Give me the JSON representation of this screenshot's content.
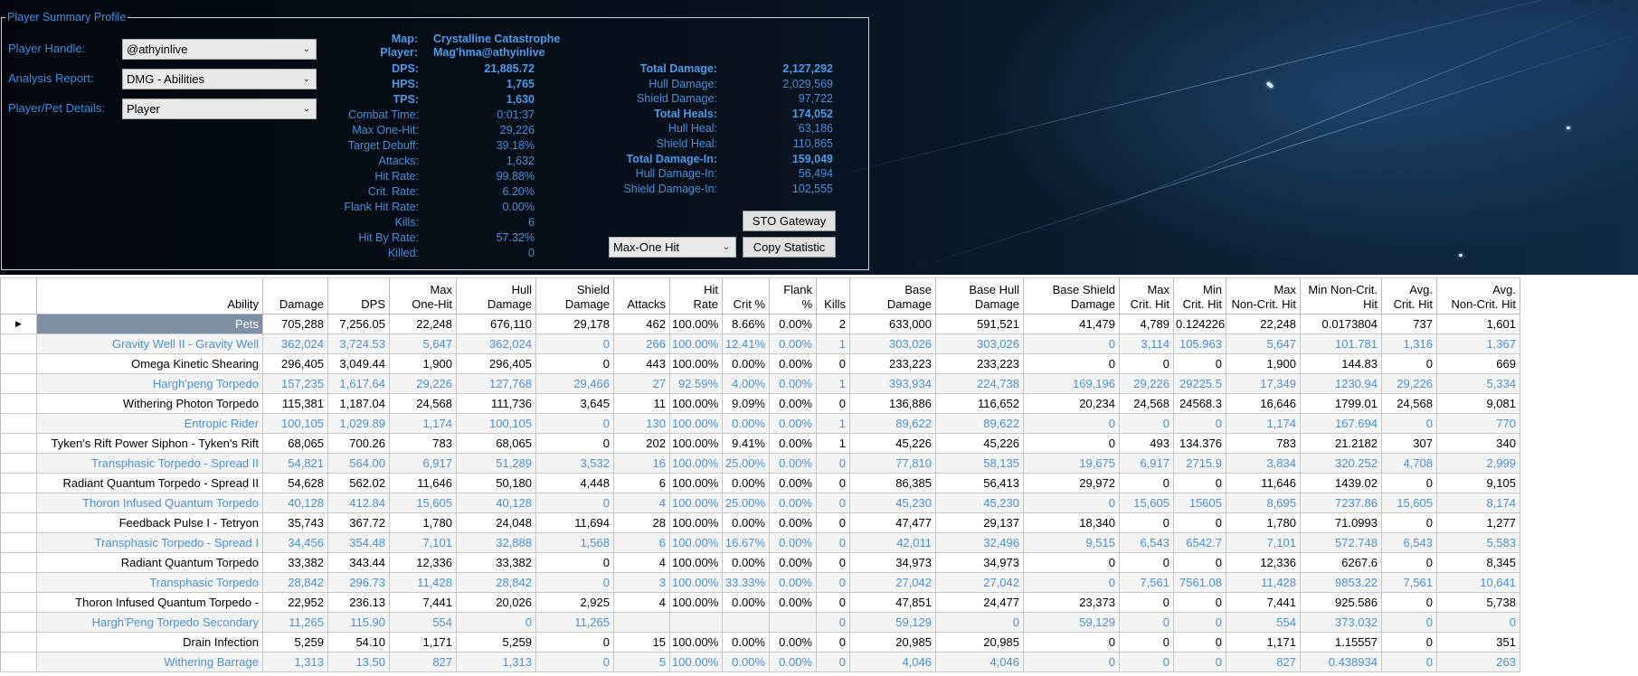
{
  "panel": {
    "title": "Player Summary Profile",
    "player_handle_label": "Player Handle:",
    "player_handle_value": "@athyinlive",
    "analysis_report_label": "Analysis Report:",
    "analysis_report_value": "DMG - Abilities",
    "player_pet_label": "Player/Pet Details:",
    "player_pet_value": "Player"
  },
  "stats": {
    "map_label": "Map:",
    "map_value": "Crystalline Catastrophe",
    "player_label": "Player:",
    "player_value": "Mag'hma@athyinlive",
    "left": [
      {
        "label": "DPS:",
        "value": "21,885.72",
        "bold": true
      },
      {
        "label": "HPS:",
        "value": "1,765",
        "bold": true
      },
      {
        "label": "TPS:",
        "value": "1,630",
        "bold": true
      },
      {
        "label": "Combat Time:",
        "value": "0:01:37"
      },
      {
        "label": "Max One-Hit:",
        "value": "29,226"
      },
      {
        "label": "Target Debuff:",
        "value": "39.18%"
      },
      {
        "label": "Attacks:",
        "value": "1,632"
      },
      {
        "label": "Hit Rate:",
        "value": "99.88%"
      },
      {
        "label": "Crit. Rate:",
        "value": "6.20%"
      },
      {
        "label": "Flank Hit Rate:",
        "value": "0.00%"
      },
      {
        "label": "Kills:",
        "value": "6"
      },
      {
        "label": "Hit By Rate:",
        "value": "57.32%"
      },
      {
        "label": "Killed:",
        "value": "0"
      }
    ],
    "right": [
      {
        "label": "Total Damage:",
        "value": "2,127,292",
        "bold": true
      },
      {
        "label": "Hull Damage:",
        "value": "2,029,569"
      },
      {
        "label": "Shield Damage:",
        "value": "97,722"
      },
      {
        "label": "Total Heals:",
        "value": "174,052",
        "bold": true
      },
      {
        "label": "Hull Heal:",
        "value": "63,186"
      },
      {
        "label": "Shield Heal:",
        "value": "110,865"
      },
      {
        "label": "Total Damage-In:",
        "value": "159,049",
        "bold": true
      },
      {
        "label": "Hull Damage-In:",
        "value": "56,494"
      },
      {
        "label": "Shield Damage-In:",
        "value": "102,555"
      }
    ]
  },
  "buttons": {
    "sto_gateway": "STO Gateway",
    "copy_statistic": "Copy Statistic",
    "statistic_select": "Max-One Hit"
  },
  "table": {
    "headers": [
      "Ability",
      "Damage",
      "DPS",
      "Max\nOne-Hit",
      "Hull\nDamage",
      "Shield\nDamage",
      "Attacks",
      "Hit\nRate",
      "Crit %",
      "Flank\n%",
      "Kills",
      "Base\nDamage",
      "Base Hull\nDamage",
      "Base Shield\nDamage",
      "Max\nCrit. Hit",
      "Min\nCrit. Hit",
      "Max\nNon-Crit. Hit",
      "Min Non-Crit.\nHit",
      "Avg.\nCrit. Hit",
      "Avg.\nNon-Crit. Hit"
    ],
    "rows": [
      {
        "style": "dark",
        "selected": true,
        "cells": [
          "Pets",
          "705,288",
          "7,256.05",
          "22,248",
          "676,110",
          "29,178",
          "462",
          "100.00%",
          "8.66%",
          "0.00%",
          "2",
          "633,000",
          "591,521",
          "41,479",
          "4,789",
          "0.124226",
          "22,248",
          "0.0173804",
          "737",
          "1,601"
        ]
      },
      {
        "style": "light",
        "cells": [
          "Gravity Well II - Gravity Well",
          "362,024",
          "3,724.53",
          "5,647",
          "362,024",
          "0",
          "266",
          "100.00%",
          "12.41%",
          "0.00%",
          "1",
          "303,026",
          "303,026",
          "0",
          "3,114",
          "105.963",
          "5,647",
          "101.781",
          "1,316",
          "1,367"
        ]
      },
      {
        "style": "dark",
        "cells": [
          "Omega Kinetic Shearing",
          "296,405",
          "3,049.44",
          "1,900",
          "296,405",
          "0",
          "443",
          "100.00%",
          "0.00%",
          "0.00%",
          "0",
          "233,223",
          "233,223",
          "0",
          "0",
          "0",
          "1,900",
          "144.83",
          "0",
          "669"
        ]
      },
      {
        "style": "light",
        "cells": [
          "Hargh'peng Torpedo",
          "157,235",
          "1,617.64",
          "29,226",
          "127,768",
          "29,466",
          "27",
          "92.59%",
          "4.00%",
          "0.00%",
          "1",
          "393,934",
          "224,738",
          "169,196",
          "29,226",
          "29225.5",
          "17,349",
          "1230.94",
          "29,226",
          "5,334"
        ]
      },
      {
        "style": "dark",
        "cells": [
          "Withering Photon Torpedo",
          "115,381",
          "1,187.04",
          "24,568",
          "111,736",
          "3,645",
          "11",
          "100.00%",
          "9.09%",
          "0.00%",
          "0",
          "136,886",
          "116,652",
          "20,234",
          "24,568",
          "24568.3",
          "16,646",
          "1799.01",
          "24,568",
          "9,081"
        ]
      },
      {
        "style": "light",
        "cells": [
          "Entropic Rider",
          "100,105",
          "1,029.89",
          "1,174",
          "100,105",
          "0",
          "130",
          "100.00%",
          "0.00%",
          "0.00%",
          "1",
          "89,622",
          "89,622",
          "0",
          "0",
          "0",
          "1,174",
          "167.694",
          "0",
          "770"
        ]
      },
      {
        "style": "dark",
        "cells": [
          "Tyken's Rift Power Siphon - Tyken's Rift",
          "68,065",
          "700.26",
          "783",
          "68,065",
          "0",
          "202",
          "100.00%",
          "9.41%",
          "0.00%",
          "1",
          "45,226",
          "45,226",
          "0",
          "493",
          "134.376",
          "783",
          "21.2182",
          "307",
          "340"
        ]
      },
      {
        "style": "light",
        "cells": [
          "Transphasic Torpedo - Spread II",
          "54,821",
          "564.00",
          "6,917",
          "51,289",
          "3,532",
          "16",
          "100.00%",
          "25.00%",
          "0.00%",
          "0",
          "77,810",
          "58,135",
          "19,675",
          "6,917",
          "2715.9",
          "3,834",
          "320.252",
          "4,708",
          "2,999"
        ]
      },
      {
        "style": "dark",
        "cells": [
          "Radiant Quantum Torpedo - Spread II",
          "54,628",
          "562.02",
          "11,646",
          "50,180",
          "4,448",
          "6",
          "100.00%",
          "0.00%",
          "0.00%",
          "0",
          "86,385",
          "56,413",
          "29,972",
          "0",
          "0",
          "11,646",
          "1439.02",
          "0",
          "9,105"
        ]
      },
      {
        "style": "light",
        "cells": [
          "Thoron Infused Quantum Torpedo",
          "40,128",
          "412.84",
          "15,605",
          "40,128",
          "0",
          "4",
          "100.00%",
          "25.00%",
          "0.00%",
          "0",
          "45,230",
          "45,230",
          "0",
          "15,605",
          "15605",
          "8,695",
          "7237.86",
          "15,605",
          "8,174"
        ]
      },
      {
        "style": "dark",
        "cells": [
          "Feedback Pulse I - Tetryon",
          "35,743",
          "367.72",
          "1,780",
          "24,048",
          "11,694",
          "28",
          "100.00%",
          "0.00%",
          "0.00%",
          "0",
          "47,477",
          "29,137",
          "18,340",
          "0",
          "0",
          "1,780",
          "71.0993",
          "0",
          "1,277"
        ]
      },
      {
        "style": "light",
        "cells": [
          "Transphasic Torpedo - Spread I",
          "34,456",
          "354.48",
          "7,101",
          "32,888",
          "1,568",
          "6",
          "100.00%",
          "16.67%",
          "0.00%",
          "0",
          "42,011",
          "32,496",
          "9,515",
          "6,543",
          "6542.7",
          "7,101",
          "572.748",
          "6,543",
          "5,583"
        ]
      },
      {
        "style": "dark",
        "cells": [
          "Radiant Quantum Torpedo",
          "33,382",
          "343.44",
          "12,336",
          "33,382",
          "0",
          "4",
          "100.00%",
          "0.00%",
          "0.00%",
          "0",
          "34,973",
          "34,973",
          "0",
          "0",
          "0",
          "12,336",
          "6267.6",
          "0",
          "8,345"
        ]
      },
      {
        "style": "light",
        "cells": [
          "Transphasic Torpedo",
          "28,842",
          "296.73",
          "11,428",
          "28,842",
          "0",
          "3",
          "100.00%",
          "33.33%",
          "0.00%",
          "0",
          "27,042",
          "27,042",
          "0",
          "7,561",
          "7561.08",
          "11,428",
          "9853.22",
          "7,561",
          "10,641"
        ]
      },
      {
        "style": "dark",
        "cells": [
          "Thoron Infused Quantum Torpedo -",
          "22,952",
          "236.13",
          "7,441",
          "20,026",
          "2,925",
          "4",
          "100.00%",
          "0.00%",
          "0.00%",
          "0",
          "47,851",
          "24,477",
          "23,373",
          "0",
          "0",
          "7,441",
          "925.586",
          "0",
          "5,738"
        ]
      },
      {
        "style": "light",
        "cells": [
          "Hargh'Peng Torpedo Secondary",
          "11,265",
          "115.90",
          "554",
          "0",
          "11,265",
          "",
          "",
          "",
          "",
          "0",
          "59,129",
          "0",
          "59,129",
          "0",
          "0",
          "554",
          "373.032",
          "0",
          "0"
        ]
      },
      {
        "style": "dark",
        "cells": [
          "Drain Infection",
          "5,259",
          "54.10",
          "1,171",
          "5,259",
          "0",
          "15",
          "100.00%",
          "0.00%",
          "0.00%",
          "0",
          "20,985",
          "20,985",
          "0",
          "0",
          "0",
          "1,171",
          "1.15557",
          "0",
          "351"
        ]
      },
      {
        "style": "light",
        "cells": [
          "Withering Barrage",
          "1,313",
          "13.50",
          "827",
          "1,313",
          "0",
          "5",
          "100.00%",
          "0.00%",
          "0.00%",
          "0",
          "4,046",
          "4,046",
          "0",
          "0",
          "0",
          "827",
          "0.438934",
          "0",
          "263"
        ]
      }
    ]
  }
}
